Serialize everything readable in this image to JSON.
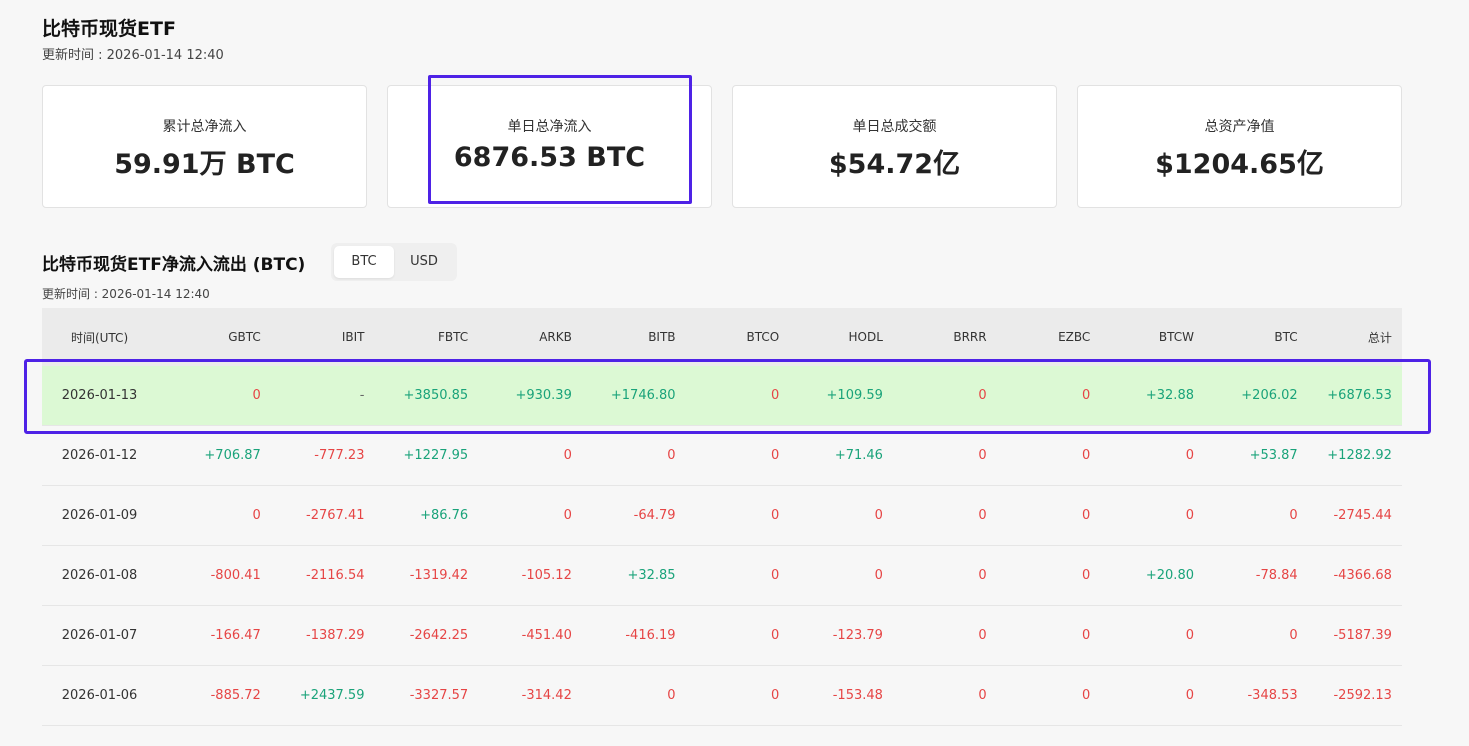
{
  "header": {
    "title": "比特币现货ETF",
    "updated": "更新时间 : 2026-01-14 12:40"
  },
  "cards": [
    {
      "label": "累计总净流入",
      "value": "59.91万 BTC"
    },
    {
      "label": "单日总净流入",
      "value": "6876.53 BTC"
    },
    {
      "label": "单日总成交额",
      "value": "$54.72亿"
    },
    {
      "label": "总资产净值",
      "value": "$1204.65亿"
    }
  ],
  "flows": {
    "title": "比特币现货ETF净流入流出 (BTC)",
    "toggle": {
      "btc": "BTC",
      "usd": "USD",
      "selected": "BTC"
    },
    "updated": "更新时间 : 2026-01-14 12:40",
    "columns": [
      "时间(UTC)",
      "GBTC",
      "IBIT",
      "FBTC",
      "ARKB",
      "BITB",
      "BTCO",
      "HODL",
      "BRRR",
      "EZBC",
      "BTCW",
      "BTC",
      "总计"
    ],
    "rows": [
      [
        "2026-01-13",
        "0",
        "-",
        "+3850.85",
        "+930.39",
        "+1746.80",
        "0",
        "+109.59",
        "0",
        "0",
        "+32.88",
        "+206.02",
        "+6876.53"
      ],
      [
        "2026-01-12",
        "+706.87",
        "-777.23",
        "+1227.95",
        "0",
        "0",
        "0",
        "+71.46",
        "0",
        "0",
        "0",
        "+53.87",
        "+1282.92"
      ],
      [
        "2026-01-09",
        "0",
        "-2767.41",
        "+86.76",
        "0",
        "-64.79",
        "0",
        "0",
        "0",
        "0",
        "0",
        "0",
        "-2745.44"
      ],
      [
        "2026-01-08",
        "-800.41",
        "-2116.54",
        "-1319.42",
        "-105.12",
        "+32.85",
        "0",
        "0",
        "0",
        "0",
        "+20.80",
        "-78.84",
        "-4366.68"
      ],
      [
        "2026-01-07",
        "-166.47",
        "-1387.29",
        "-2642.25",
        "-451.40",
        "-416.19",
        "0",
        "-123.79",
        "0",
        "0",
        "0",
        "0",
        "-5187.39"
      ],
      [
        "2026-01-06",
        "-885.72",
        "+2437.59",
        "-3327.57",
        "-314.42",
        "0",
        "0",
        "-153.48",
        "0",
        "0",
        "0",
        "-348.53",
        "-2592.13"
      ]
    ],
    "highlighted_row": 0,
    "highlighted_card": 1
  },
  "colors": {
    "positive": "#1aa37a",
    "negative": "#e64545",
    "highlight": "#4e22e6",
    "row_highlight_bg": "#dcf9d4"
  }
}
